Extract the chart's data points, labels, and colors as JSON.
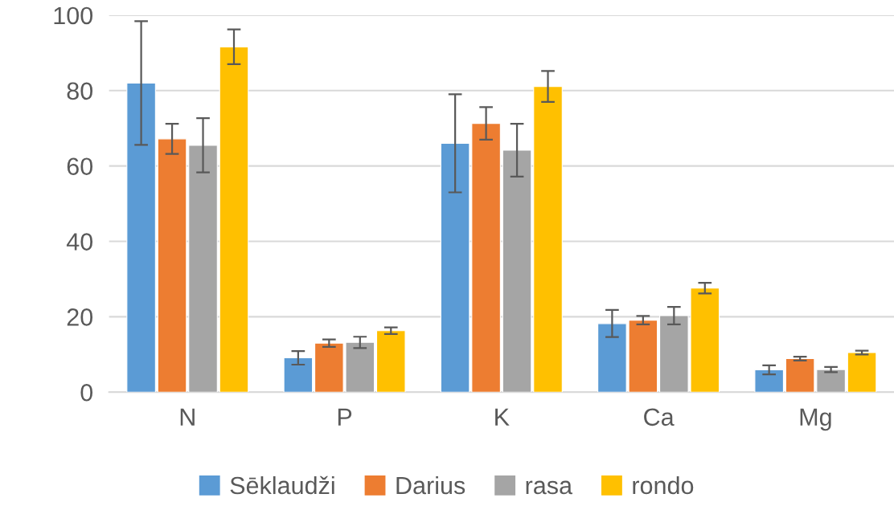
{
  "chart_data": {
    "type": "bar",
    "categories": [
      "N",
      "P",
      "K",
      "Ca",
      "Mg"
    ],
    "series": [
      {
        "name": "Sēklaudži",
        "color": "#5b9bd5",
        "values": [
          82.0,
          9.1,
          66.0,
          18.2,
          5.9
        ],
        "errors": [
          16.4,
          1.8,
          13.0,
          3.6,
          1.2
        ]
      },
      {
        "name": "Darius",
        "color": "#ed7d31",
        "values": [
          67.2,
          13.0,
          71.3,
          19.1,
          8.9
        ],
        "errors": [
          4.0,
          1.0,
          4.3,
          1.1,
          0.5
        ]
      },
      {
        "name": "rasa",
        "color": "#a5a5a5",
        "values": [
          65.5,
          13.2,
          64.2,
          20.3,
          6.0
        ],
        "errors": [
          7.2,
          1.5,
          7.0,
          2.3,
          0.7
        ]
      },
      {
        "name": "rondo",
        "color": "#ffc000",
        "values": [
          91.6,
          16.3,
          81.1,
          27.6,
          10.5
        ],
        "errors": [
          4.6,
          0.9,
          4.1,
          1.4,
          0.5
        ]
      }
    ],
    "ylim": [
      0,
      100
    ],
    "yticks": [
      0,
      20,
      40,
      60,
      80,
      100
    ],
    "grid": "y",
    "legend": "bottom"
  }
}
